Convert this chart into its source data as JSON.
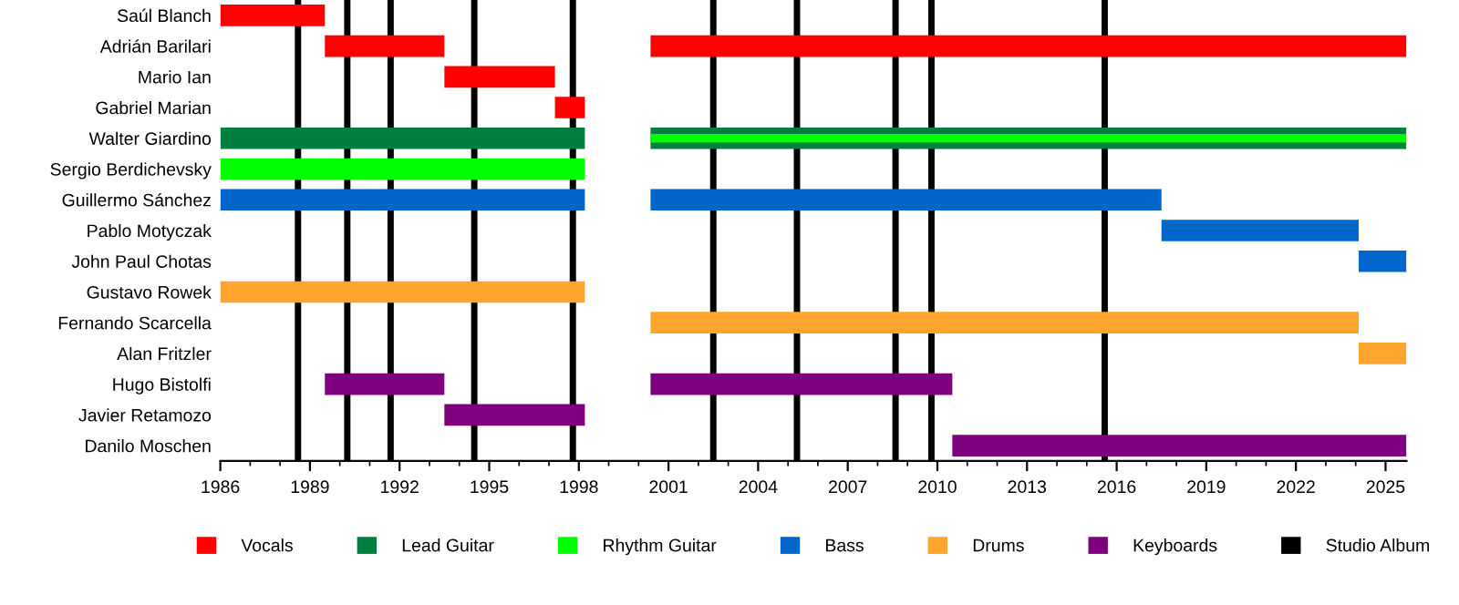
{
  "chart_data": {
    "type": "bar",
    "orientation": "horizontal",
    "categories": [
      "Saúl Blanch",
      "Adrián Barilari",
      "Mario Ian",
      "Gabriel Marian",
      "Walter Giardino",
      "Sergio Berdichevsky",
      "Guillermo Sánchez",
      "Pablo Motyczak",
      "John Paul Chotas",
      "Gustavo Rowek",
      "Fernando Scarcella",
      "Alan Fritzler",
      "Hugo Bistolfi",
      "Javier Retamozo",
      "Danilo Moschen"
    ],
    "series": [
      {
        "name": "Vocals",
        "color": "#ff0000",
        "base": [
          1986,
          1989.5,
          1993.5,
          1997.2,
          null,
          null,
          null,
          null,
          null,
          null,
          null,
          null,
          null,
          null,
          null
        ],
        "values": [
          3.5,
          4.0,
          3.7,
          1.0,
          null,
          null,
          null,
          null,
          null,
          null,
          null,
          null,
          null,
          null,
          null
        ]
      },
      {
        "color": "#ff0000",
        "base": [
          null,
          2000.4,
          null,
          null,
          null,
          null,
          null,
          null,
          null,
          null,
          null,
          null,
          null,
          null,
          null
        ],
        "values": [
          null,
          25.3,
          null,
          null,
          null,
          null,
          null,
          null,
          null,
          null,
          null,
          null,
          null,
          null,
          null
        ]
      },
      {
        "name": "Lead Guitar",
        "color": "#007f3f",
        "base": [
          null,
          null,
          null,
          null,
          1986,
          null,
          null,
          null,
          null,
          null,
          null,
          null,
          null,
          null,
          null
        ],
        "values": [
          null,
          null,
          null,
          null,
          12.2,
          null,
          null,
          null,
          null,
          null,
          null,
          null,
          null,
          null,
          null
        ]
      },
      {
        "color": "#007f3f",
        "base": [
          null,
          null,
          null,
          null,
          2000.4,
          null,
          null,
          null,
          null,
          null,
          null,
          null,
          null,
          null,
          null
        ],
        "values": [
          null,
          null,
          null,
          null,
          25.3,
          null,
          null,
          null,
          null,
          null,
          null,
          null,
          null,
          null,
          null
        ]
      },
      {
        "name": "Rhythm Guitar",
        "color": "#00ff00",
        "base": [
          null,
          null,
          null,
          null,
          2000.4,
          1986,
          null,
          null,
          null,
          null,
          null,
          null,
          null,
          null,
          null
        ],
        "values": [
          null,
          null,
          null,
          null,
          25.3,
          12.2,
          null,
          null,
          null,
          null,
          null,
          null,
          null,
          null,
          null
        ]
      },
      {
        "name": "Bass",
        "color": "#0066cc",
        "base": [
          null,
          null,
          null,
          null,
          null,
          null,
          1986,
          2017.5,
          2024.1,
          null,
          null,
          null,
          null,
          null,
          null
        ],
        "values": [
          null,
          null,
          null,
          null,
          null,
          null,
          12.2,
          6.6,
          1.6,
          null,
          null,
          null,
          null,
          null,
          null
        ]
      },
      {
        "color": "#0066cc",
        "base": [
          null,
          null,
          null,
          null,
          null,
          null,
          2000.4,
          null,
          null,
          null,
          null,
          null,
          null,
          null,
          null
        ],
        "values": [
          null,
          null,
          null,
          null,
          null,
          null,
          17.1,
          null,
          null,
          null,
          null,
          null,
          null,
          null,
          null
        ]
      },
      {
        "name": "Drums",
        "color": "#ffa42c",
        "base": [
          null,
          null,
          null,
          null,
          null,
          null,
          null,
          null,
          null,
          1986,
          2000.4,
          2024.1,
          null,
          null,
          null
        ],
        "values": [
          null,
          null,
          null,
          null,
          null,
          null,
          null,
          null,
          null,
          12.2,
          23.7,
          1.6,
          null,
          null,
          null
        ]
      },
      {
        "name": "Keyboards",
        "color": "#7f007f",
        "base": [
          null,
          null,
          null,
          null,
          null,
          null,
          null,
          null,
          null,
          null,
          null,
          null,
          1989.5,
          1993.5,
          2010.5
        ],
        "values": [
          null,
          null,
          null,
          null,
          null,
          null,
          null,
          null,
          null,
          null,
          null,
          null,
          4.0,
          4.7,
          15.2
        ]
      },
      {
        "color": "#7f007f",
        "base": [
          null,
          null,
          null,
          null,
          null,
          null,
          null,
          null,
          null,
          null,
          null,
          null,
          2000.4,
          null,
          null
        ],
        "values": [
          null,
          null,
          null,
          null,
          null,
          null,
          null,
          null,
          null,
          null,
          null,
          null,
          10.1,
          null,
          null
        ]
      }
    ],
    "ref_lines": [
      {
        "axis": "x",
        "value": 1988.6,
        "label": "Studio Album",
        "color": "#000000"
      },
      {
        "axis": "x",
        "value": 1990.25,
        "label": null,
        "color": "#000000"
      },
      {
        "axis": "x",
        "value": 1991.7,
        "label": null,
        "color": "#000000"
      },
      {
        "axis": "x",
        "value": 1994.5,
        "label": null,
        "color": "#000000"
      },
      {
        "axis": "x",
        "value": 1997.8,
        "label": null,
        "color": "#000000"
      },
      {
        "axis": "x",
        "value": 2002.5,
        "label": null,
        "color": "#000000"
      },
      {
        "axis": "x",
        "value": 2005.3,
        "label": null,
        "color": "#000000"
      },
      {
        "axis": "x",
        "value": 2008.6,
        "label": null,
        "color": "#000000"
      },
      {
        "axis": "x",
        "value": 2009.8,
        "label": null,
        "color": "#000000"
      },
      {
        "axis": "x",
        "value": 2015.6,
        "label": null,
        "color": "#000000"
      }
    ],
    "xlim": [
      1986,
      2025.7
    ],
    "xticks": [
      1986,
      1989,
      1992,
      1995,
      1998,
      2001,
      2004,
      2007,
      2010,
      2013,
      2016,
      2019,
      2022,
      2025
    ],
    "grid": false,
    "legend": "bottom"
  }
}
